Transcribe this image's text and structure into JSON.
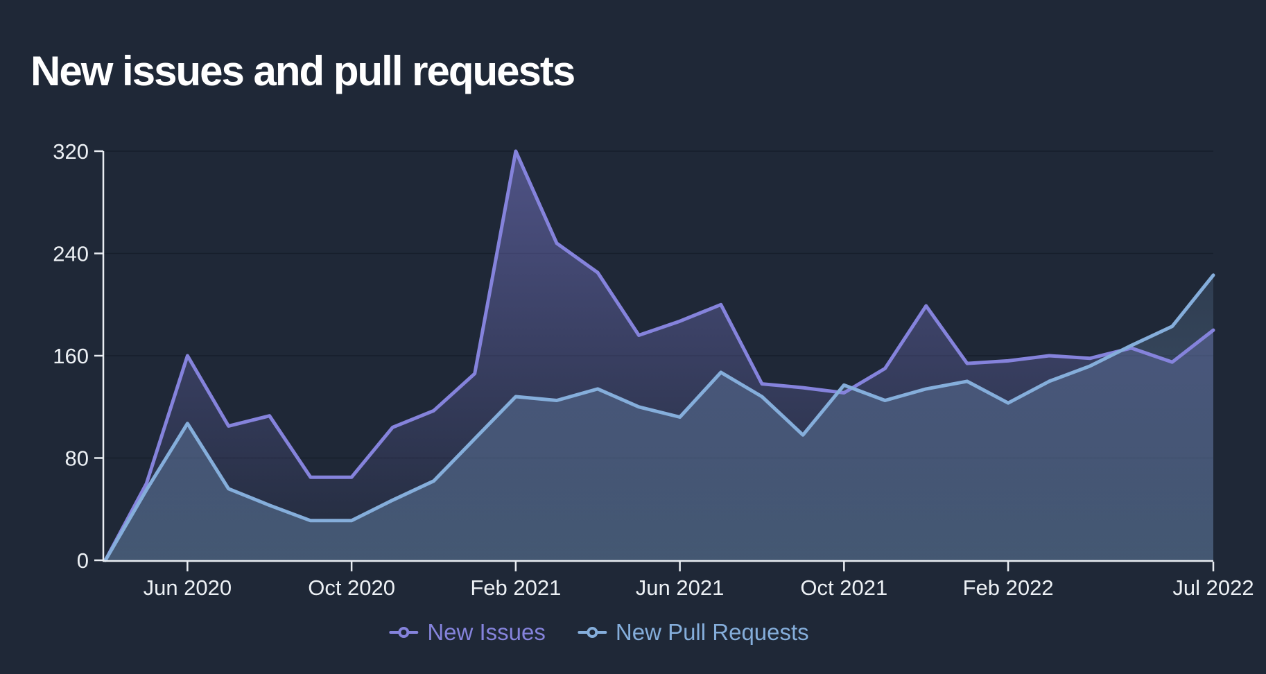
{
  "title": "New issues and pull requests",
  "colors": {
    "background": "#1F2837",
    "grid": "#171E2B",
    "axis": "#E9EDF2",
    "tick_label": "#EDF1F5",
    "title": "#FFFFFF"
  },
  "chart_data": {
    "type": "area",
    "title": "New issues and pull requests",
    "xlabel": "",
    "ylabel": "",
    "ylim": [
      0,
      320
    ],
    "y_ticks": [
      0,
      80,
      160,
      240,
      320
    ],
    "grid": "horizontal",
    "legend_position": "bottom",
    "x": [
      "Apr 2020",
      "May 2020",
      "Jun 2020",
      "Jul 2020",
      "Aug 2020",
      "Sep 2020",
      "Oct 2020",
      "Nov 2020",
      "Dec 2020",
      "Jan 2021",
      "Feb 2021",
      "Mar 2021",
      "Apr 2021",
      "May 2021",
      "Jun 2021",
      "Jul 2021",
      "Aug 2021",
      "Sep 2021",
      "Oct 2021",
      "Nov 2021",
      "Dec 2021",
      "Jan 2022",
      "Feb 2022",
      "Mar 2022",
      "Apr 2022",
      "May 2022",
      "Jun 2022",
      "Jul 2022"
    ],
    "x_tick_indices": [
      2,
      6,
      10,
      14,
      18,
      22,
      27
    ],
    "x_tick_labels": [
      "Jun 2020",
      "Oct 2020",
      "Feb 2021",
      "Jun 2021",
      "Oct 2021",
      "Feb 2022",
      "Jul 2022"
    ],
    "series": [
      {
        "name": "New Issues",
        "color": "#8583DC",
        "fill_top": "rgba(131,129,219,0.48)",
        "fill_bottom": "rgba(131,129,219,0.03)",
        "values": [
          0,
          60,
          160,
          105,
          113,
          65,
          65,
          104,
          117,
          146,
          320,
          248,
          225,
          176,
          187,
          200,
          138,
          135,
          131,
          150,
          199,
          154,
          156,
          160,
          158,
          166,
          155,
          180
        ]
      },
      {
        "name": "New Pull Requests",
        "color": "#85AEDB",
        "fill_top": "rgba(133,174,219,0.08)",
        "fill_bottom": "rgba(133,174,219,0.34)",
        "values": [
          0,
          55,
          107,
          56,
          43,
          31,
          31,
          47,
          62,
          95,
          128,
          125,
          134,
          120,
          112,
          147,
          128,
          98,
          137,
          125,
          134,
          140,
          123,
          140,
          152,
          168,
          183,
          223
        ]
      }
    ]
  },
  "legend": {
    "items": [
      "New Issues",
      "New Pull Requests"
    ]
  }
}
